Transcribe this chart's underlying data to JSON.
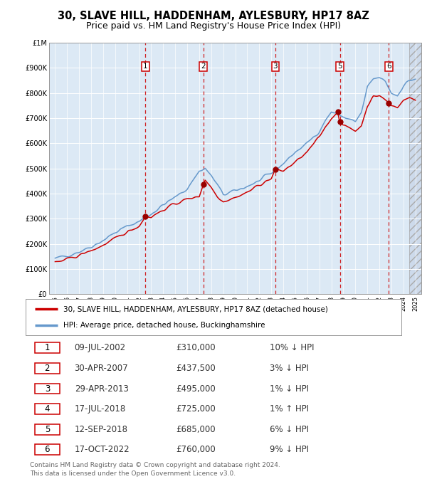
{
  "title": "30, SLAVE HILL, HADDENHAM, AYLESBURY, HP17 8AZ",
  "subtitle": "Price paid vs. HM Land Registry's House Price Index (HPI)",
  "title_fontsize": 10.5,
  "subtitle_fontsize": 9,
  "bg_color": "#dce9f5",
  "grid_color": "#ffffff",
  "sale_dates_num": [
    2002.52,
    2007.33,
    2013.33,
    2018.54,
    2018.71,
    2022.79
  ],
  "sale_prices": [
    310000,
    437500,
    495000,
    725000,
    685000,
    760000
  ],
  "sale_labels": [
    "1",
    "2",
    "3",
    "4",
    "5",
    "6"
  ],
  "vline_dates": [
    2002.52,
    2007.33,
    2013.33,
    2018.71,
    2022.79
  ],
  "vline_box_labels": [
    "1",
    "2",
    "3",
    "5",
    "6"
  ],
  "ylim": [
    0,
    1000000
  ],
  "xlim": [
    1994.5,
    2025.5
  ],
  "yticks": [
    0,
    100000,
    200000,
    300000,
    400000,
    500000,
    600000,
    700000,
    800000,
    900000,
    1000000
  ],
  "ytick_labels": [
    "£0",
    "£100K",
    "£200K",
    "£300K",
    "£400K",
    "£500K",
    "£600K",
    "£700K",
    "£800K",
    "£900K",
    "£1M"
  ],
  "xtick_years": [
    1995,
    1996,
    1997,
    1998,
    1999,
    2000,
    2001,
    2002,
    2003,
    2004,
    2005,
    2006,
    2007,
    2008,
    2009,
    2010,
    2011,
    2012,
    2013,
    2014,
    2015,
    2016,
    2017,
    2018,
    2019,
    2020,
    2021,
    2022,
    2023,
    2024,
    2025
  ],
  "red_line_color": "#cc0000",
  "blue_line_color": "#6699cc",
  "sale_dot_color": "#990000",
  "vline_color": "#cc0000",
  "legend_entries": [
    "30, SLAVE HILL, HADDENHAM, AYLESBURY, HP17 8AZ (detached house)",
    "HPI: Average price, detached house, Buckinghamshire"
  ],
  "table_rows": [
    [
      "1",
      "09-JUL-2002",
      "£310,000",
      "10% ↓ HPI"
    ],
    [
      "2",
      "30-APR-2007",
      "£437,500",
      "3% ↓ HPI"
    ],
    [
      "3",
      "29-APR-2013",
      "£495,000",
      "1% ↓ HPI"
    ],
    [
      "4",
      "17-JUL-2018",
      "£725,000",
      "1% ↑ HPI"
    ],
    [
      "5",
      "12-SEP-2018",
      "£685,000",
      "6% ↓ HPI"
    ],
    [
      "6",
      "17-OCT-2022",
      "£760,000",
      "9% ↓ HPI"
    ]
  ],
  "footer_text": "Contains HM Land Registry data © Crown copyright and database right 2024.\nThis data is licensed under the Open Government Licence v3.0.",
  "table_font_color": "#333333",
  "footer_font_color": "#666666"
}
